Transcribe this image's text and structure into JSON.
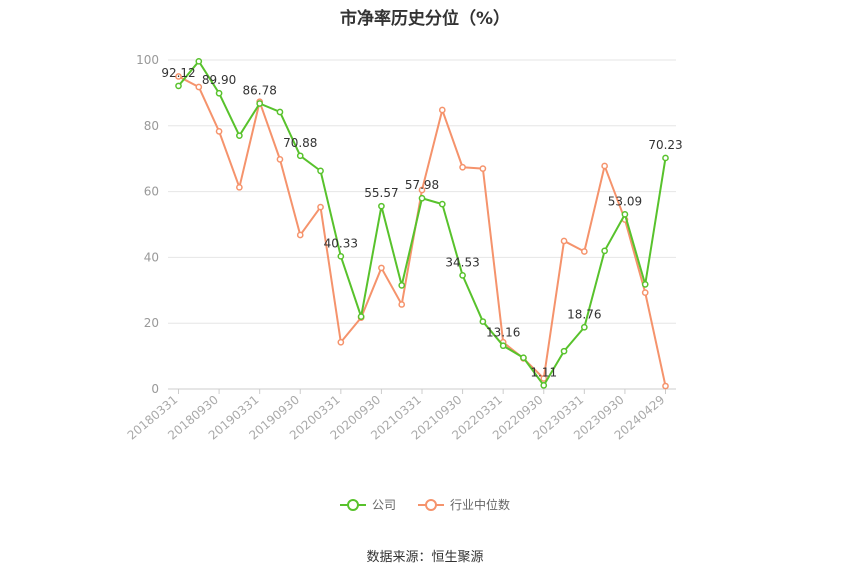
{
  "chart_data": {
    "type": "line",
    "title": "市净率历史分位（%）",
    "source": "数据来源：恒生聚源",
    "ylim": [
      0,
      100
    ],
    "yticks": [
      0,
      20,
      40,
      60,
      80,
      100
    ],
    "xtick_labels": [
      "20180331",
      "20180930",
      "20190331",
      "20190930",
      "20200331",
      "20200930",
      "20210331",
      "20210930",
      "20220331",
      "20220930",
      "20230331",
      "20230930",
      "20240429"
    ],
    "x": [
      "20180331",
      "20180630",
      "20180930",
      "20181231",
      "20190331",
      "20190630",
      "20190930",
      "20191231",
      "20200331",
      "20200630",
      "20200930",
      "20201231",
      "20210331",
      "20210630",
      "20210930",
      "20211231",
      "20220331",
      "20220630",
      "20220930",
      "20221231",
      "20230331",
      "20230630",
      "20230930",
      "20231231",
      "20240429"
    ],
    "grid": true,
    "legend_position": "bottom",
    "series": [
      {
        "name": "公司",
        "color": "#58c22c",
        "values": [
          92.12,
          99.6,
          89.9,
          77.0,
          86.78,
          84.2,
          70.88,
          66.3,
          40.33,
          22.0,
          55.57,
          31.5,
          57.98,
          56.2,
          34.53,
          20.5,
          13.16,
          9.5,
          1.11,
          11.5,
          18.76,
          42.0,
          53.09,
          31.8,
          70.23
        ]
      },
      {
        "name": "行业中位数",
        "color": "#f5936c",
        "values": [
          95.0,
          91.8,
          78.3,
          61.3,
          87.3,
          69.8,
          46.8,
          55.3,
          14.2,
          21.7,
          36.8,
          25.7,
          60.5,
          84.8,
          67.4,
          67.0,
          14.2,
          9.3,
          3.2,
          45.0,
          41.8,
          67.8,
          51.5,
          29.3,
          0.9
        ]
      }
    ],
    "data_labels": [
      {
        "index": 0,
        "text": "92.12"
      },
      {
        "index": 2,
        "text": "89.90"
      },
      {
        "index": 4,
        "text": "86.78"
      },
      {
        "index": 6,
        "text": "70.88"
      },
      {
        "index": 8,
        "text": "40.33"
      },
      {
        "index": 10,
        "text": "55.57"
      },
      {
        "index": 12,
        "text": "57.98"
      },
      {
        "index": 14,
        "text": "34.53"
      },
      {
        "index": 16,
        "text": "13.16"
      },
      {
        "index": 18,
        "text": "1.11"
      },
      {
        "index": 20,
        "text": "18.76"
      },
      {
        "index": 22,
        "text": "53.09"
      },
      {
        "index": 24,
        "text": "70.23"
      }
    ]
  }
}
